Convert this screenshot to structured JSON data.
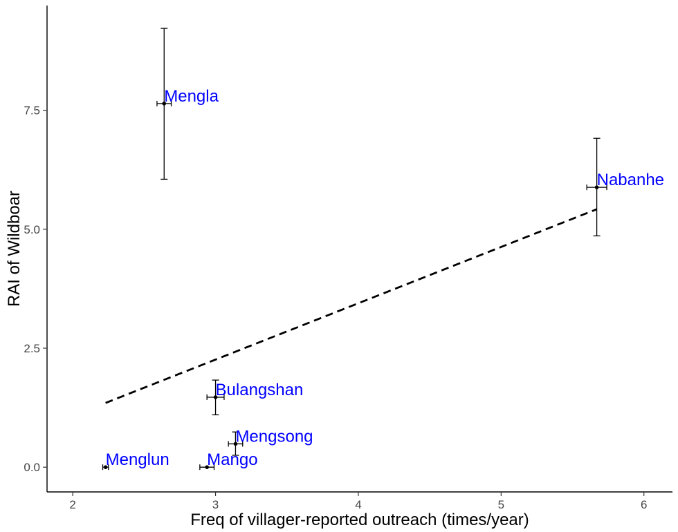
{
  "chart_data": {
    "type": "scatter",
    "xlabel": "Freq of villager-reported outreach (times/year)",
    "ylabel": "RAI of Wildboar",
    "xlim": [
      1.82,
      6.2
    ],
    "ylim": [
      -0.52,
      9.7
    ],
    "x_ticks": [
      {
        "value": 2,
        "label": "2"
      },
      {
        "value": 3,
        "label": "3"
      },
      {
        "value": 4,
        "label": "4"
      },
      {
        "value": 5,
        "label": "5"
      },
      {
        "value": 6,
        "label": "6"
      }
    ],
    "y_ticks": [
      {
        "value": 0,
        "label": "0.0"
      },
      {
        "value": 2.5,
        "label": "2.5"
      },
      {
        "value": 5,
        "label": "5.0"
      },
      {
        "value": 7.5,
        "label": "7.5"
      }
    ],
    "grid": false,
    "label_color": "#0000ff",
    "point_color": "#000000",
    "points": [
      {
        "name": "Mengla",
        "x": 2.64,
        "y": 7.64,
        "xerr": [
          2.59,
          2.69
        ],
        "yerr": [
          6.05,
          9.22
        ]
      },
      {
        "name": "Nabanhe",
        "x": 5.67,
        "y": 5.88,
        "xerr": [
          5.6,
          5.74
        ],
        "yerr": [
          4.86,
          6.91
        ]
      },
      {
        "name": "Bulangshan",
        "x": 3.0,
        "y": 1.47,
        "xerr": [
          2.94,
          3.06
        ],
        "yerr": [
          1.1,
          1.83
        ]
      },
      {
        "name": "Mengsong",
        "x": 3.14,
        "y": 0.49,
        "xerr": [
          3.09,
          3.19
        ],
        "yerr": [
          0.25,
          0.74
        ]
      },
      {
        "name": "Menglun",
        "x": 2.23,
        "y": 0.0,
        "xerr": [
          2.21,
          2.25
        ],
        "yerr": [
          0.0,
          0.0
        ]
      },
      {
        "name": "Mango",
        "x": 2.94,
        "y": 0.0,
        "xerr": [
          2.89,
          2.99
        ],
        "yerr": [
          0.0,
          0.0
        ]
      }
    ],
    "trend_line": {
      "style": "dashed",
      "from": [
        2.23,
        1.35
      ],
      "to": [
        5.67,
        5.42
      ]
    }
  }
}
